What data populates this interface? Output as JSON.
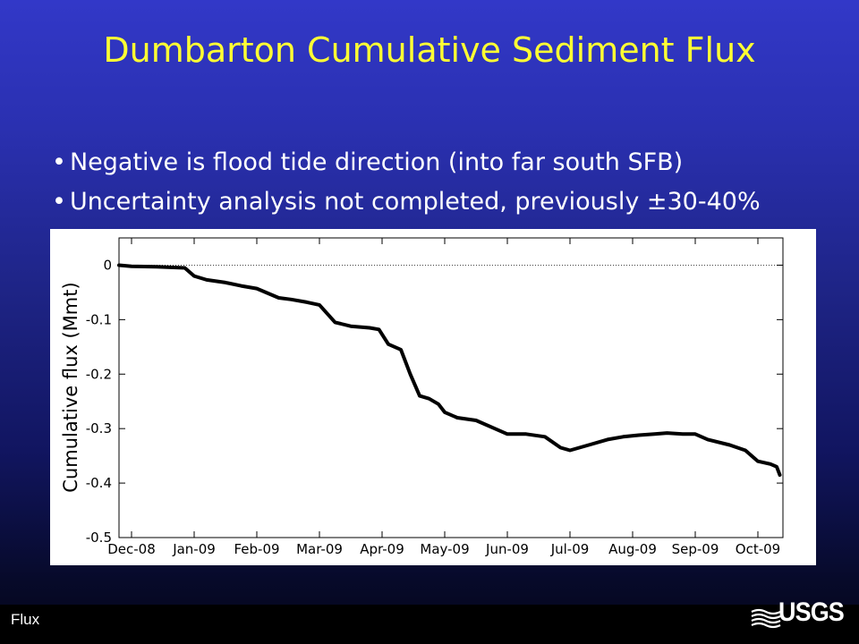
{
  "slide": {
    "title": "Dumbarton Cumulative Sediment Flux",
    "bullets": [
      "Negative is flood tide direction (into far south SFB)",
      "Uncertainty analysis not completed, previously ±30-40%"
    ],
    "footer_label": "Flux",
    "logo_text": "USGS"
  },
  "chart_data": {
    "type": "line",
    "title": "",
    "xlabel": "",
    "ylabel": "Cumulative flux (Mmt)",
    "x_tick_labels": [
      "Dec-08",
      "Jan-09",
      "Feb-09",
      "Mar-09",
      "Apr-09",
      "May-09",
      "Jun-09",
      "Jul-09",
      "Aug-09",
      "Sep-09",
      "Oct-09"
    ],
    "y_ticks": [
      0,
      -0.1,
      -0.2,
      -0.3,
      -0.4,
      -0.5
    ],
    "y_tick_labels": [
      "0",
      "-0.1",
      "-0.2",
      "-0.3",
      "-0.4",
      "-0.5"
    ],
    "ylim": [
      -0.5,
      0.05
    ],
    "xlim_months": [
      -0.2,
      10.4
    ],
    "grid": false,
    "zero_reference_line": "dotted",
    "series": [
      {
        "color": "#000000",
        "x_months": [
          -0.2,
          0.0,
          0.4,
          0.85,
          1.0,
          1.2,
          1.5,
          1.75,
          2.0,
          2.35,
          2.55,
          2.8,
          3.0,
          3.25,
          3.5,
          3.8,
          3.95,
          4.1,
          4.3,
          4.45,
          4.6,
          4.75,
          4.9,
          5.0,
          5.2,
          5.5,
          5.8,
          6.0,
          6.3,
          6.6,
          6.85,
          7.0,
          7.3,
          7.6,
          7.85,
          8.1,
          8.35,
          8.55,
          8.8,
          9.0,
          9.2,
          9.55,
          9.8,
          10.0,
          10.2,
          10.3,
          10.35
        ],
        "y": [
          0.0,
          -0.002,
          -0.003,
          -0.005,
          -0.02,
          -0.027,
          -0.032,
          -0.038,
          -0.043,
          -0.06,
          -0.063,
          -0.068,
          -0.073,
          -0.105,
          -0.112,
          -0.115,
          -0.118,
          -0.145,
          -0.155,
          -0.2,
          -0.24,
          -0.245,
          -0.255,
          -0.27,
          -0.28,
          -0.285,
          -0.3,
          -0.31,
          -0.31,
          -0.315,
          -0.335,
          -0.34,
          -0.33,
          -0.32,
          -0.315,
          -0.312,
          -0.31,
          -0.308,
          -0.31,
          -0.31,
          -0.32,
          -0.33,
          -0.34,
          -0.36,
          -0.365,
          -0.37,
          -0.385
        ]
      }
    ]
  }
}
